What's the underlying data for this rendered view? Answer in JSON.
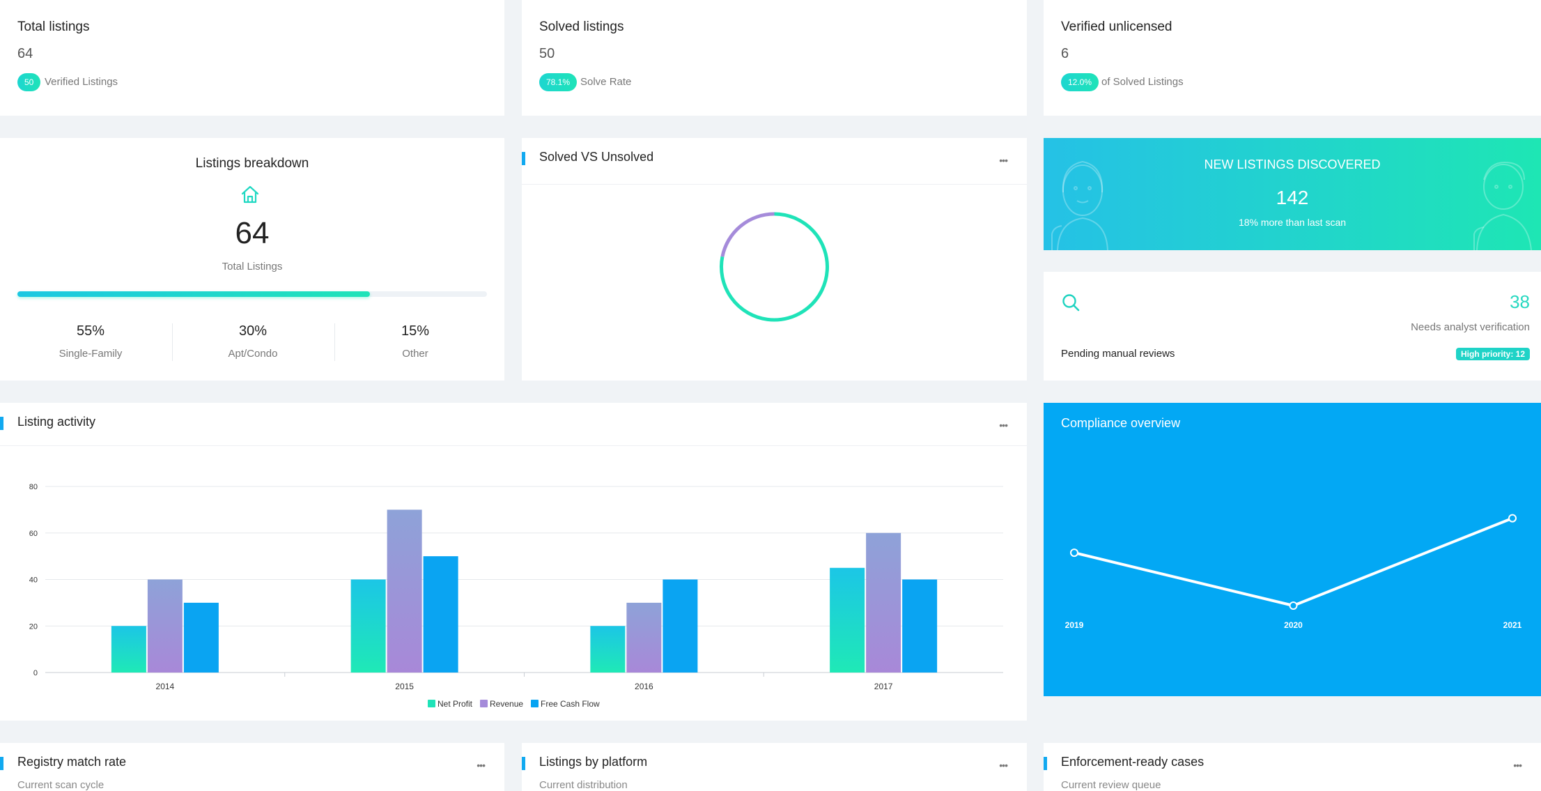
{
  "stats": [
    {
      "title": "Total listings",
      "value": "64",
      "badge": "50",
      "caption": "Verified Listings"
    },
    {
      "title": "Solved listings",
      "value": "50",
      "badge": "78.1%",
      "caption": "Solve Rate"
    },
    {
      "title": "Verified unlicensed",
      "value": "6",
      "badge": "12.0%",
      "caption": "of Solved Listings"
    }
  ],
  "breakdown": {
    "title": "Listings breakdown",
    "icon": "home-icon",
    "total": "64",
    "total_label": "Total Listings",
    "progress_fraction": 0.75,
    "columns": [
      {
        "pct": "55%",
        "label": "Single-Family"
      },
      {
        "pct": "30%",
        "label": "Apt/Condo"
      },
      {
        "pct": "15%",
        "label": "Other"
      }
    ]
  },
  "solved_vs_unsolved": {
    "title": "Solved VS Unsolved",
    "menu_icon": "more-dots-icon",
    "chart_data": {
      "type": "pie",
      "series": [
        {
          "values": [
            78.1,
            21.9
          ]
        }
      ],
      "colors": [
        "#1fe3b8",
        "#a58bda"
      ]
    }
  },
  "new_listings": {
    "title": "NEW LISTINGS DISCOVERED",
    "value": "142",
    "subtitle": "18% more than last scan"
  },
  "pending": {
    "icon": "search-icon",
    "value": "38",
    "note": "Needs analyst verification",
    "label": "Pending manual reviews",
    "badge": "High priority: 12"
  },
  "listing_activity": {
    "title": "Listing activity",
    "menu_icon": "more-dots-icon",
    "chart_data": {
      "type": "bar",
      "categories": [
        "2014",
        "2015",
        "2016",
        "2017"
      ],
      "series": [
        {
          "name": "Net Profit",
          "values": [
            20,
            40,
            20,
            45
          ]
        },
        {
          "name": "Revenue",
          "values": [
            40,
            70,
            30,
            60
          ]
        },
        {
          "name": "Free Cash Flow",
          "values": [
            30,
            50,
            40,
            40
          ]
        }
      ],
      "yticks": [
        "0",
        "20",
        "40",
        "60",
        "80"
      ],
      "ylim": [
        0,
        80
      ],
      "grid": true,
      "legend": "bottom-center",
      "colors": [
        "#1fe3b8",
        "#a58bda",
        "#06a3f2"
      ]
    }
  },
  "compliance": {
    "title": "Compliance overview",
    "chart_data": {
      "type": "line",
      "x": [
        "2019",
        "2020",
        "2021"
      ],
      "values": [
        53,
        30,
        68
      ],
      "ylim": [
        0,
        100
      ],
      "color": "#ffffff"
    }
  },
  "bottom_cards": [
    {
      "title": "Registry match rate",
      "subtitle": "Current scan cycle"
    },
    {
      "title": "Listings by platform",
      "subtitle": "Current distribution"
    },
    {
      "title": "Enforcement-ready cases",
      "subtitle": "Current review queue"
    }
  ]
}
